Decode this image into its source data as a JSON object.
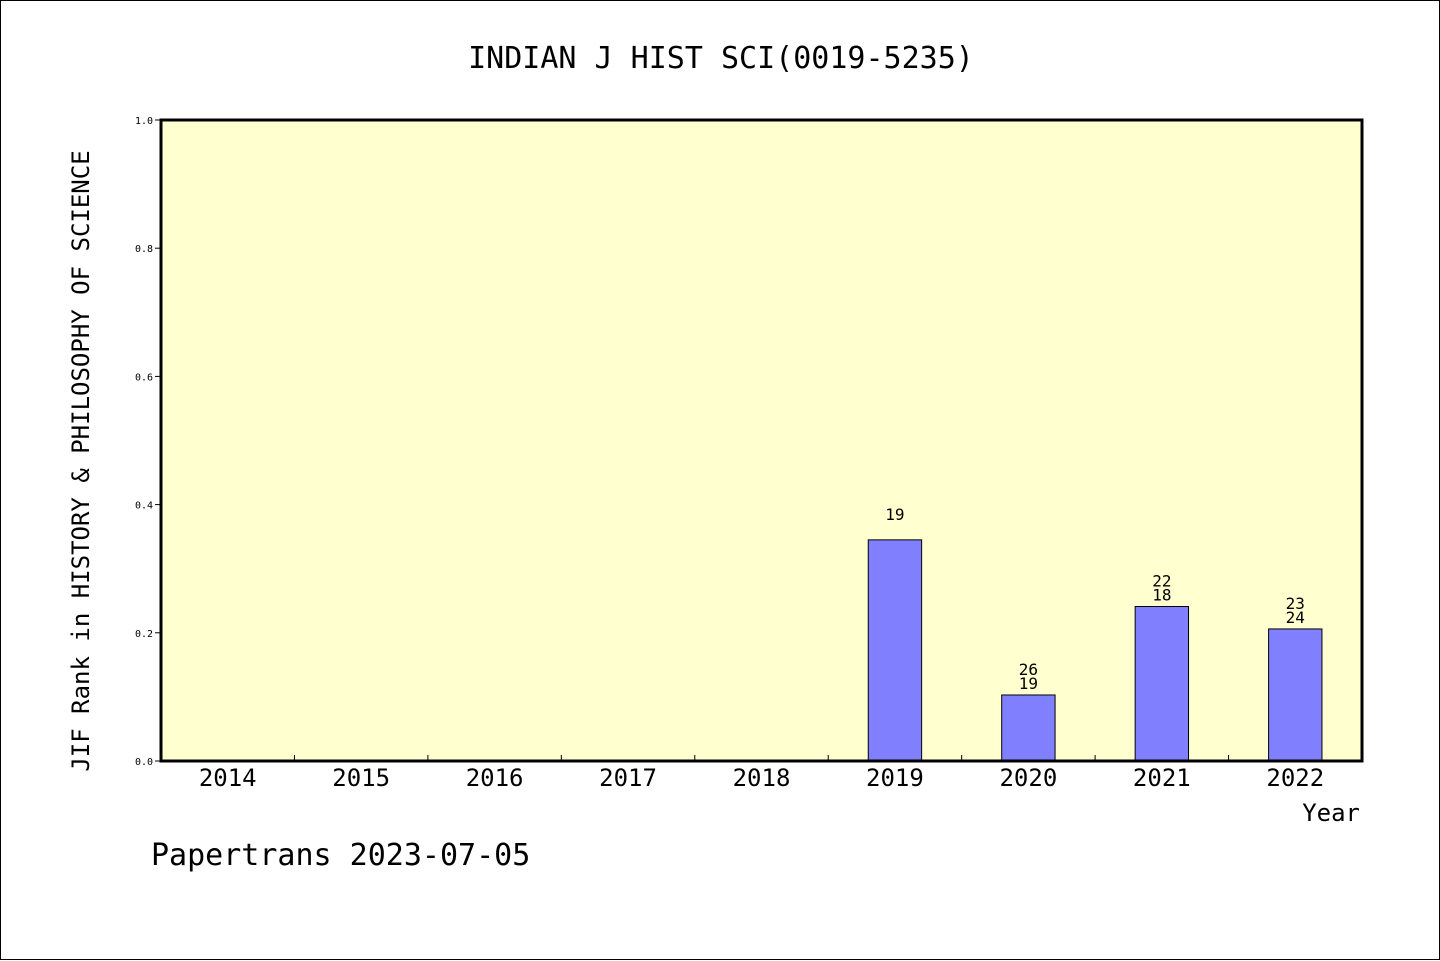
{
  "colors": {
    "plot_background": "#FFFFD0",
    "bar_fill": "#8080FF",
    "bar_stroke": "#000000",
    "axis": "#000000"
  },
  "chart_data": {
    "type": "bar",
    "title": "INDIAN J HIST SCI(0019-5235)",
    "ylabel": "JIF Rank in HISTORY & PHILOSOPHY OF SCIENCE",
    "xlabel": "Year",
    "ylim": [
      0,
      1.0
    ],
    "yticks": [
      "0.0",
      "0.2",
      "0.4",
      "0.6",
      "0.8",
      "1.0"
    ],
    "categories": [
      "2014",
      "2015",
      "2016",
      "2017",
      "2018",
      "2019",
      "2020",
      "2021",
      "2022"
    ],
    "values": [
      null,
      null,
      null,
      null,
      null,
      0.345,
      0.103,
      0.241,
      0.206
    ],
    "bar_labels": [
      [],
      [],
      [],
      [],
      [],
      [
        "19"
      ],
      [
        "26",
        "19"
      ],
      [
        "22",
        "18"
      ],
      [
        "23",
        "24"
      ]
    ],
    "grid": false,
    "legend": "none"
  },
  "footer": {
    "text": "Papertrans 2023-07-05"
  }
}
